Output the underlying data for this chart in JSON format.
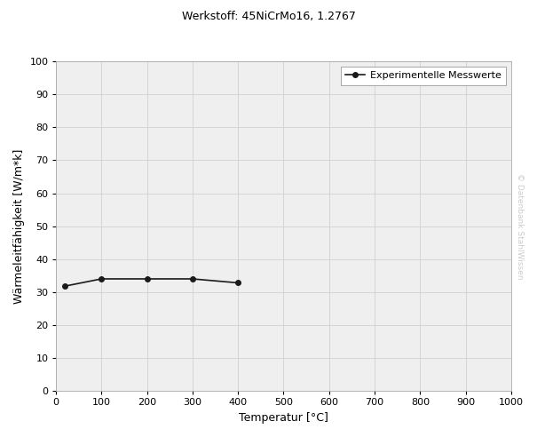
{
  "title": "Werkstoff: 45NiCrMo16, 1.2767",
  "xlabel": "Temperatur [°C]",
  "ylabel": "Wärmeleitfähigkeit [W/m*k]",
  "x_data": [
    20,
    100,
    200,
    300,
    400
  ],
  "y_data": [
    31.8,
    34.0,
    34.0,
    34.0,
    32.8
  ],
  "legend_label": "Experimentelle Messwerte",
  "line_color": "#1a1a1a",
  "marker": "o",
  "marker_size": 4,
  "line_width": 1.2,
  "xlim": [
    0,
    1000
  ],
  "ylim": [
    0,
    100
  ],
  "xticks": [
    0,
    100,
    200,
    300,
    400,
    500,
    600,
    700,
    800,
    900,
    1000
  ],
  "yticks": [
    0,
    10,
    20,
    30,
    40,
    50,
    60,
    70,
    80,
    90,
    100
  ],
  "grid_color": "#d0d0d0",
  "plot_bg_color": "#efefef",
  "figure_bg_color": "#ffffff",
  "watermark_text": "© Datenbank StahlWissen",
  "watermark_color": "#cccccc",
  "title_fontsize": 9,
  "axis_label_fontsize": 9,
  "tick_fontsize": 8,
  "legend_fontsize": 8,
  "spine_color": "#aaaaaa"
}
